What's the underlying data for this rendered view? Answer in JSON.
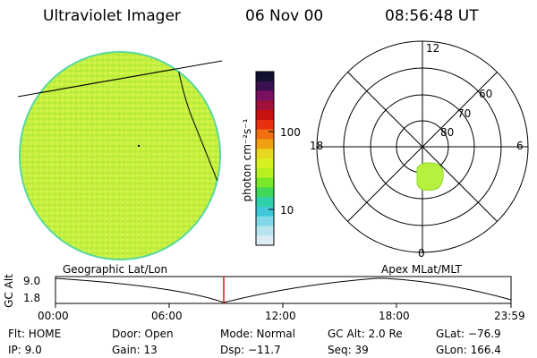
{
  "header": {
    "title": "Ultraviolet Imager",
    "date": "06 Nov 00",
    "time": "08:56:48 UT"
  },
  "colorbar": {
    "unit_label": "photon cm⁻²s⁻¹",
    "ticks": [
      "100",
      "10"
    ],
    "colors": [
      "#101030",
      "#3a1050",
      "#7a1060",
      "#a0103a",
      "#c81010",
      "#e83010",
      "#f07010",
      "#f0a010",
      "#e8d820",
      "#d8f020",
      "#b8f020",
      "#78e828",
      "#40d858",
      "#30d0a8",
      "#40c8d8",
      "#80d8e8",
      "#b8e4f0",
      "#dcecf4"
    ]
  },
  "globe": {
    "fill_color": "#c8f040",
    "edge_color": "#58d8a0"
  },
  "polar": {
    "mlt_labels": [
      "12",
      "6",
      "0",
      "18"
    ],
    "lat_labels": [
      "60",
      "70",
      "80"
    ],
    "aurora_color": "#b8f040"
  },
  "panels": {
    "left_label": "Geographic Lat/Lon",
    "right_label": "Apex MLat/MLT"
  },
  "altitude_plot": {
    "ylabel": "GC Alt",
    "ymax_label": "9.0",
    "ymin_label": "1.8",
    "x_labels": [
      "00:00",
      "06:00",
      "12:00",
      "18:00",
      "23:59"
    ],
    "marker_color": "#e01010"
  },
  "info": {
    "flt": "Flt:  HOME",
    "ip": "IP:  9.0",
    "door": "Door:  Open",
    "gain": "Gain:  13",
    "mode": "Mode:  Normal",
    "dsp": "Dsp:   −11.7",
    "gcalt": "GC Alt:  2.0 Re",
    "seq": "Seq:  39",
    "glat": "GLat:  −76.9",
    "glon": "GLon:  166.4"
  }
}
